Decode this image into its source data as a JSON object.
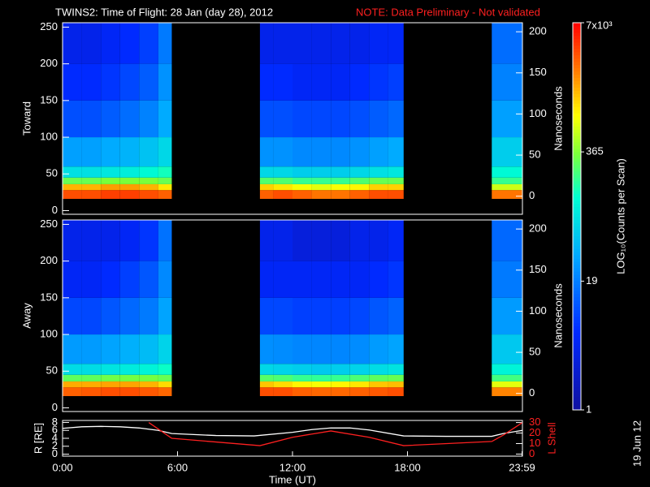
{
  "chart_data": [
    {
      "type": "heatmap",
      "title": "TWINS2: Time of Flight: 28 Jan (day  28), 2012",
      "note": "NOTE: Data Preliminary - Not validated",
      "ylabel": "Toward",
      "y2label": "Nanoseconds",
      "x_bins": [
        0,
        1,
        2,
        3,
        4,
        5,
        5.7,
        10.3,
        11,
        12,
        13,
        14,
        15,
        16,
        17,
        17.8,
        22.4,
        24
      ],
      "y_bins": [
        16,
        28,
        36,
        45,
        60,
        100,
        150,
        200,
        256
      ],
      "values": [
        [
          3500,
          3500,
          4000,
          4000,
          3500,
          3000,
          null,
          3000,
          3500,
          3000,
          2500,
          2500,
          3000,
          3500,
          3500,
          null,
          2500
        ],
        [
          1500,
          1500,
          1800,
          1800,
          1500,
          1000,
          null,
          1200,
          1000,
          800,
          700,
          800,
          900,
          1200,
          1200,
          null,
          600
        ],
        [
          300,
          300,
          350,
          350,
          350,
          300,
          null,
          250,
          250,
          200,
          200,
          200,
          250,
          300,
          300,
          null,
          200
        ],
        [
          80,
          80,
          90,
          100,
          120,
          150,
          null,
          70,
          70,
          60,
          60,
          60,
          70,
          80,
          90,
          null,
          120
        ],
        [
          30,
          30,
          35,
          40,
          50,
          70,
          null,
          25,
          25,
          22,
          22,
          22,
          25,
          30,
          35,
          null,
          60
        ],
        [
          10,
          10,
          12,
          15,
          20,
          35,
          null,
          10,
          10,
          9,
          9,
          9,
          10,
          12,
          14,
          null,
          30
        ],
        [
          6,
          6,
          7,
          9,
          12,
          25,
          null,
          6,
          6,
          5,
          5,
          5,
          6,
          7,
          8,
          null,
          20
        ],
        [
          4,
          4,
          5,
          6,
          8,
          18,
          null,
          4,
          4,
          4,
          4,
          4,
          4,
          5,
          5,
          null,
          15
        ]
      ],
      "ylim": [
        -5,
        256
      ],
      "yticks": [
        0,
        50,
        100,
        150,
        200,
        250
      ],
      "y2lim": [
        -22,
        211
      ],
      "y2ticks": [
        0,
        50,
        100,
        150,
        200
      ],
      "colorbar": {
        "label": "LOG₁₀(Counts per Scan)",
        "lim": [
          1,
          7000
        ],
        "log": true,
        "ticks": [
          1,
          19,
          365,
          {
            "value": 7000,
            "label": "7x10³"
          }
        ]
      }
    },
    {
      "type": "heatmap",
      "ylabel": "Away",
      "y2label": "Nanoseconds",
      "x_bins": [
        0,
        1,
        2,
        3,
        4,
        5,
        5.7,
        10.3,
        11,
        12,
        13,
        14,
        15,
        16,
        17,
        17.8,
        22.4,
        24
      ],
      "y_bins": [
        16,
        28,
        36,
        45,
        60,
        100,
        150,
        200,
        256
      ],
      "values": [
        [
          3000,
          3200,
          3500,
          3500,
          3200,
          2800,
          null,
          3500,
          3500,
          3000,
          2800,
          2800,
          3000,
          3200,
          3500,
          null,
          2200
        ],
        [
          1600,
          1600,
          1700,
          1700,
          1500,
          1100,
          null,
          1300,
          1100,
          900,
          800,
          900,
          1000,
          1300,
          1400,
          null,
          700
        ],
        [
          280,
          280,
          320,
          330,
          330,
          300,
          null,
          260,
          240,
          200,
          190,
          200,
          240,
          280,
          300,
          null,
          220
        ],
        [
          75,
          75,
          85,
          95,
          110,
          140,
          null,
          70,
          65,
          60,
          55,
          60,
          65,
          75,
          85,
          null,
          110
        ],
        [
          28,
          28,
          32,
          38,
          45,
          65,
          null,
          24,
          23,
          21,
          21,
          21,
          23,
          28,
          32,
          null,
          55
        ],
        [
          9,
          9,
          11,
          14,
          18,
          32,
          null,
          9,
          9,
          8,
          8,
          8,
          9,
          11,
          13,
          null,
          28
        ],
        [
          5,
          5,
          6,
          8,
          11,
          22,
          null,
          5,
          5,
          5,
          5,
          5,
          5,
          6,
          7,
          null,
          18
        ],
        [
          4,
          4,
          4,
          5,
          7,
          16,
          null,
          4,
          4,
          3,
          3,
          3,
          4,
          4,
          5,
          null,
          14
        ]
      ],
      "ylim": [
        -5,
        256
      ],
      "yticks": [
        0,
        50,
        100,
        150,
        200,
        250
      ],
      "y2lim": [
        -22,
        211
      ],
      "y2ticks": [
        0,
        50,
        100,
        150,
        200
      ]
    },
    {
      "type": "line",
      "ylabel": "R [RE]",
      "y2label": "L Shell",
      "xlabel": "Time (UT)",
      "xlim": [
        0,
        24
      ],
      "xticks": [
        {
          "value": 0,
          "label": "0:00"
        },
        {
          "value": 6,
          "label": "6:00"
        },
        {
          "value": 12,
          "label": "12:00"
        },
        {
          "value": 18,
          "label": "18:00"
        },
        {
          "value": 23.98,
          "label": "23:59"
        }
      ],
      "ylim": [
        -0.5,
        8.5
      ],
      "yticks": [
        0,
        2,
        4,
        6,
        8
      ],
      "y2lim": [
        -2,
        32
      ],
      "y2ticks": [
        0,
        10,
        20,
        30
      ],
      "series": [
        {
          "color": "#ffffff",
          "x": [
            0,
            1,
            2,
            3,
            4,
            5,
            5.7,
            8,
            10,
            12,
            13,
            14,
            15,
            16,
            17.8,
            20,
            22.4,
            23,
            24
          ],
          "values": [
            6.5,
            6.9,
            7.0,
            6.9,
            6.6,
            6.0,
            5.2,
            4.7,
            4.6,
            5.5,
            6.2,
            6.6,
            6.6,
            6.1,
            4.6,
            4.5,
            4.5,
            5.2,
            6.0
          ]
        },
        {
          "color": "#ff2020",
          "axis": "y2",
          "x": [
            4.5,
            5.7,
            10.3,
            12,
            14,
            16,
            17.8,
            22.4,
            23,
            24
          ],
          "values": [
            30,
            15,
            8,
            16,
            22,
            16,
            8,
            12,
            18,
            30
          ]
        }
      ]
    }
  ],
  "footer_date": "19 Jun 12"
}
